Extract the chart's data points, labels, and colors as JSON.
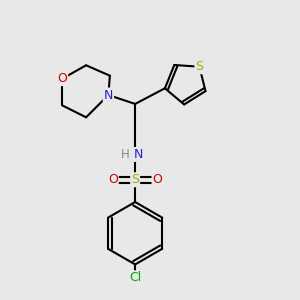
{
  "bg_color": "#e8e8e8",
  "atom_colors": {
    "C": "#000000",
    "N": "#2222cc",
    "O": "#cc0000",
    "S_thio": "#aaaa00",
    "S_sulfo": "#aaaa00",
    "Cl": "#00aa00",
    "H": "#888888"
  },
  "bond_color": "#000000",
  "bond_lw": 1.5,
  "figsize": [
    3.0,
    3.0
  ],
  "dpi": 100
}
